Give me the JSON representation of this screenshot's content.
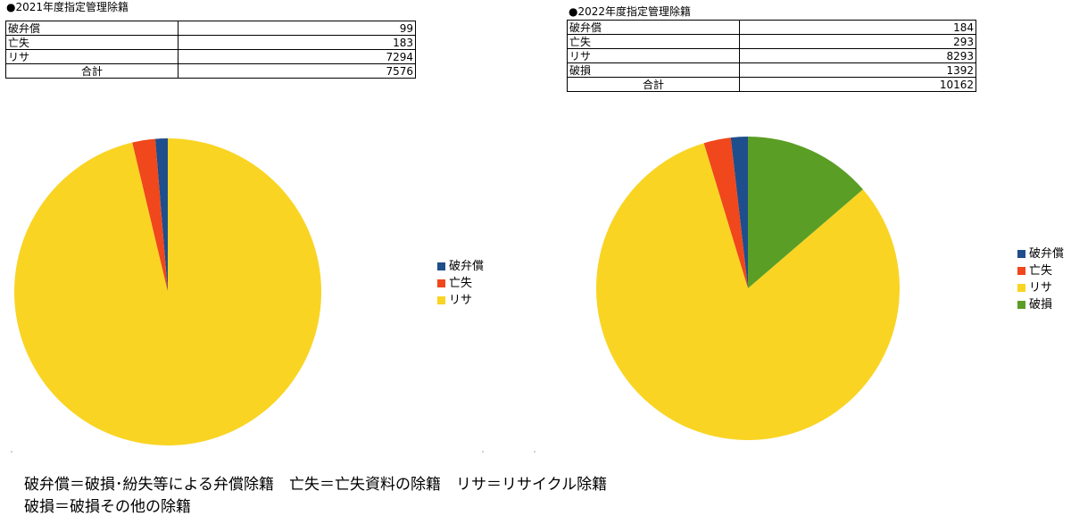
{
  "colors": {
    "破弁償": "#1f4e8c",
    "亡失": "#f0471c",
    "リサ": "#f9d423",
    "破損": "#5a9e25"
  },
  "panels": [
    {
      "title": "●2021年度指定管理除籍",
      "table": {
        "rows": [
          {
            "label": "破弁償",
            "value": "99"
          },
          {
            "label": "亡失",
            "value": "183"
          },
          {
            "label": "リサ",
            "value": "7294"
          }
        ],
        "total_label": "合計",
        "total_value": "7576"
      },
      "legend": [
        "破弁償",
        "亡失",
        "リサ"
      ]
    },
    {
      "title": "●2022年度指定管理除籍",
      "table": {
        "rows": [
          {
            "label": "破弁償",
            "value": "184"
          },
          {
            "label": "亡失",
            "value": "293"
          },
          {
            "label": "リサ",
            "value": "8293"
          },
          {
            "label": "破損",
            "value": "1392"
          }
        ],
        "total_label": "合計",
        "total_value": "10162"
      },
      "legend": [
        "破弁償",
        "亡失",
        "リサ",
        "破損"
      ]
    }
  ],
  "chart_data": [
    {
      "type": "pie",
      "title": "",
      "categories": [
        "破弁償",
        "亡失",
        "リサ"
      ],
      "values": [
        99,
        183,
        7294
      ],
      "legend_position": "right"
    },
    {
      "type": "pie",
      "title": "",
      "categories": [
        "破弁償",
        "亡失",
        "リサ",
        "破損"
      ],
      "values": [
        184,
        293,
        8293,
        1392
      ],
      "legend_position": "right"
    }
  ],
  "footnote": {
    "line1": "破弁償＝破損･紛失等による弁償除籍　亡失＝亡失資料の除籍　リサ＝リサイクル除籍",
    "line2": "破損＝破損その他の除籍"
  }
}
